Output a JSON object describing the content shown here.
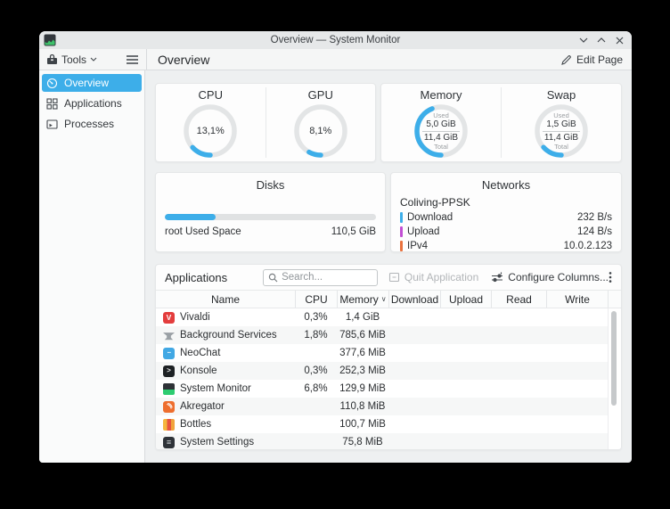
{
  "colors": {
    "accent": "#3daee9"
  },
  "window": {
    "title": "Overview — System Monitor"
  },
  "toolbar": {
    "tools_label": "Tools",
    "page_title": "Overview",
    "edit_page_label": "Edit Page"
  },
  "sidebar": {
    "items": [
      {
        "label": "Overview",
        "icon": "gauge-icon",
        "selected": true
      },
      {
        "label": "Applications",
        "icon": "grid-icon",
        "selected": false
      },
      {
        "label": "Processes",
        "icon": "process-box-icon",
        "selected": false
      }
    ]
  },
  "chart_data": [
    {
      "type": "gauge",
      "title": "CPU",
      "value_label": "13,1%",
      "percent": 13.1
    },
    {
      "type": "gauge",
      "title": "GPU",
      "value_label": "8,1%",
      "percent": 8.1
    },
    {
      "type": "gauge",
      "title": "Memory",
      "used_label": "Used",
      "used": "5,0 GiB",
      "total": "11,4 GiB",
      "total_label": "Total",
      "percent": 43.9
    },
    {
      "type": "gauge",
      "title": "Swap",
      "used_label": "Used",
      "used": "1,5 GiB",
      "total": "11,4 GiB",
      "total_label": "Total",
      "percent": 13.2
    }
  ],
  "overview": {
    "gauges": [
      {
        "title": "CPU",
        "value": "13,1%",
        "percent": 13.1
      },
      {
        "title": "GPU",
        "value": "8,1%",
        "percent": 8.1
      },
      {
        "title": "Memory",
        "used_label": "Used",
        "used": "5,0 GiB",
        "total": "11,4 GiB",
        "total_label": "Total",
        "percent": 43.9
      },
      {
        "title": "Swap",
        "used_label": "Used",
        "used": "1,5 GiB",
        "total": "11,4 GiB",
        "total_label": "Total",
        "percent": 13.2
      }
    ],
    "disks": {
      "title": "Disks",
      "bar_percent": 24,
      "row": {
        "label": "root Used Space",
        "value": "110,5 GiB"
      }
    },
    "networks": {
      "title": "Networks",
      "group": "Coliving-PPSK",
      "rows": [
        {
          "label": "Download",
          "value": "232 B/s",
          "color": "#3daee9"
        },
        {
          "label": "Upload",
          "value": "124 B/s",
          "color": "#c24fd4"
        },
        {
          "label": "IPv4",
          "value": "10.0.2.123",
          "color": "#e9713d"
        }
      ]
    }
  },
  "applications": {
    "title": "Applications",
    "search_placeholder": "Search...",
    "quit_label": "Quit Application",
    "configure_label": "Configure Columns...",
    "columns": [
      "Name",
      "CPU",
      "Memory",
      "Download",
      "Upload",
      "Read",
      "Write"
    ],
    "sort_column": "Memory",
    "rows": [
      {
        "icon": "vivaldi",
        "name": "Vivaldi",
        "cpu": "0,3%",
        "memory": "1,4 GiB",
        "download": "",
        "upload": "",
        "read": "",
        "write": ""
      },
      {
        "icon": "background-services",
        "name": "Background Services",
        "cpu": "1,8%",
        "memory": "785,6 MiB",
        "download": "",
        "upload": "",
        "read": "",
        "write": ""
      },
      {
        "icon": "neochat",
        "name": "NeoChat",
        "cpu": "",
        "memory": "377,6 MiB",
        "download": "",
        "upload": "",
        "read": "",
        "write": ""
      },
      {
        "icon": "konsole",
        "name": "Konsole",
        "cpu": "0,3%",
        "memory": "252,3 MiB",
        "download": "",
        "upload": "",
        "read": "",
        "write": ""
      },
      {
        "icon": "system-monitor",
        "name": "System Monitor",
        "cpu": "6,8%",
        "memory": "129,9 MiB",
        "download": "",
        "upload": "",
        "read": "",
        "write": ""
      },
      {
        "icon": "akregator",
        "name": "Akregator",
        "cpu": "",
        "memory": "110,8 MiB",
        "download": "",
        "upload": "",
        "read": "",
        "write": ""
      },
      {
        "icon": "bottles",
        "name": "Bottles",
        "cpu": "",
        "memory": "100,7 MiB",
        "download": "",
        "upload": "",
        "read": "",
        "write": ""
      },
      {
        "icon": "system-settings",
        "name": "System Settings",
        "cpu": "",
        "memory": "75,8 MiB",
        "download": "",
        "upload": "",
        "read": "",
        "write": ""
      }
    ]
  }
}
